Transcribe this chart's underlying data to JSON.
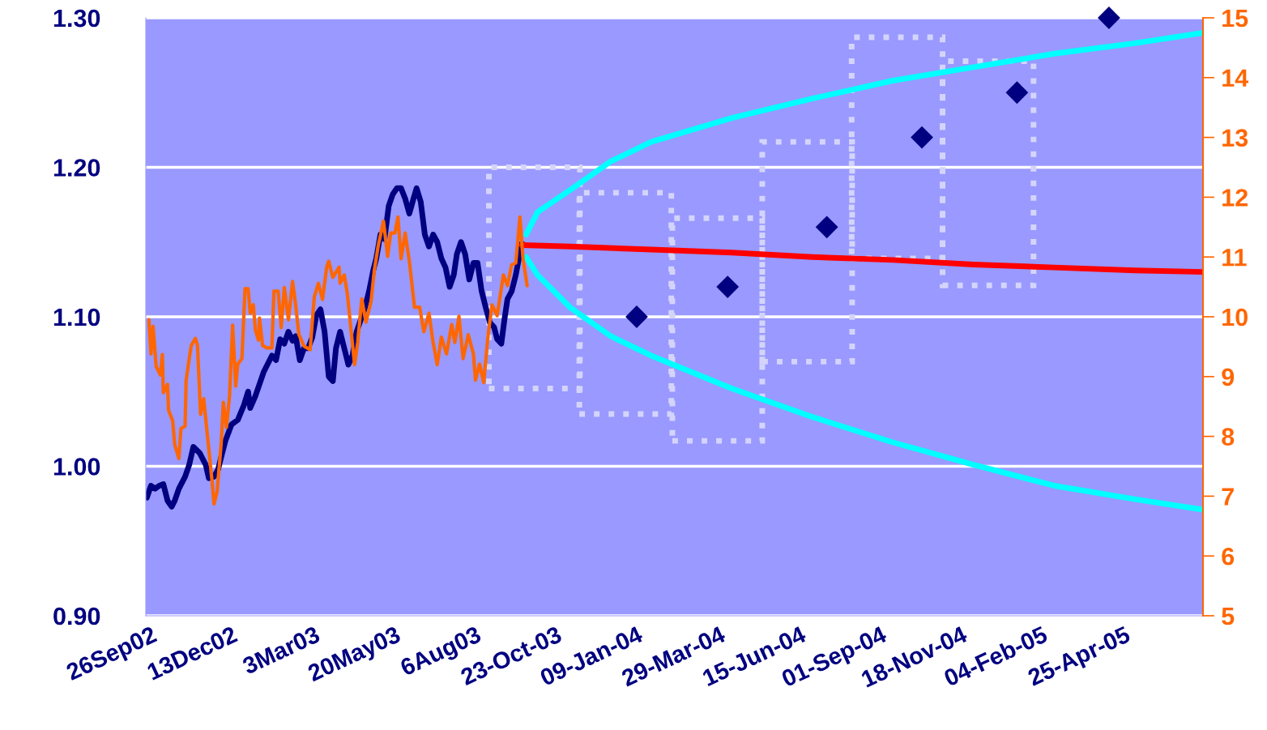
{
  "chart_data": {
    "type": "line",
    "xlim": [
      "2002-09-21",
      "2005-07-10"
    ],
    "xticks": [
      {
        "value": "2002-09-26",
        "label": "26Sep02"
      },
      {
        "value": "2002-12-13",
        "label": "13Dec02"
      },
      {
        "value": "2003-03-03",
        "label": "3Mar03"
      },
      {
        "value": "2003-05-20",
        "label": "20May03"
      },
      {
        "value": "2003-08-06",
        "label": "6Aug03"
      },
      {
        "value": "2003-10-23",
        "label": "23-Oct-03"
      },
      {
        "value": "2004-01-09",
        "label": "09-Jan-04"
      },
      {
        "value": "2004-03-29",
        "label": "29-Mar-04"
      },
      {
        "value": "2004-06-15",
        "label": "15-Jun-04"
      },
      {
        "value": "2004-09-01",
        "label": "01-Sep-04"
      },
      {
        "value": "2004-11-18",
        "label": "18-Nov-04"
      },
      {
        "value": "2005-02-04",
        "label": "04-Feb-05"
      },
      {
        "value": "2005-04-25",
        "label": "25-Apr-05"
      }
    ],
    "ylim": [
      0.9,
      1.3
    ],
    "yticks": [
      {
        "value": 0.9,
        "label": "0.90"
      },
      {
        "value": 1.0,
        "label": "1.00"
      },
      {
        "value": 1.1,
        "label": "1.10"
      },
      {
        "value": 1.2,
        "label": "1.20"
      },
      {
        "value": 1.3,
        "label": "1.30"
      }
    ],
    "y2lim": [
      5,
      15
    ],
    "y2ticks": [
      5,
      6,
      7,
      8,
      9,
      10,
      11,
      12,
      13,
      14,
      15
    ],
    "grid": "y",
    "series": [
      {
        "type": "bar",
        "color": "#d4d4fa",
        "line_style": "dotted",
        "x": [
          "2003-10-02",
          "2003-12-29",
          "2004-03-27",
          "2004-06-22",
          "2004-09-17",
          "2004-12-14"
        ],
        "base": [
          1.052,
          1.035,
          1.017,
          1.07,
          1.139,
          1.121
        ],
        "values": [
          0.148,
          0.148,
          0.149,
          0.147,
          0.148,
          0.15
        ]
      },
      {
        "color": "#000080",
        "x": [
          "2002-09-22",
          "2002-09-26",
          "2002-09-30",
          "2002-10-04",
          "2002-10-08",
          "2002-10-12",
          "2002-10-16",
          "2002-10-19",
          "2002-10-23",
          "2002-10-29",
          "2002-11-02",
          "2002-11-06",
          "2002-11-12",
          "2002-11-18",
          "2002-11-21",
          "2002-11-26",
          "2002-11-30",
          "2002-12-04",
          "2002-12-07",
          "2002-12-13",
          "2002-12-19",
          "2002-12-25",
          "2002-12-29",
          "2002-12-31",
          "2003-01-05",
          "2003-01-09",
          "2003-01-13",
          "2003-01-21",
          "2003-01-25",
          "2003-01-29",
          "2003-02-02",
          "2003-02-06",
          "2003-02-10",
          "2003-02-13",
          "2003-02-17",
          "2003-02-21",
          "2003-02-25",
          "2003-03-01",
          "2003-03-05",
          "2003-03-09",
          "2003-03-13",
          "2003-03-17",
          "2003-03-21",
          "2003-03-24",
          "2003-03-28",
          "2003-04-01",
          "2003-04-05",
          "2003-04-09",
          "2003-04-13",
          "2003-04-17",
          "2003-04-21",
          "2003-04-25",
          "2003-04-29",
          "2003-05-02",
          "2003-05-06",
          "2003-05-10",
          "2003-05-14",
          "2003-05-18",
          "2003-05-22",
          "2003-05-26",
          "2003-05-30",
          "2003-06-03",
          "2003-06-07",
          "2003-06-10",
          "2003-06-14",
          "2003-06-18",
          "2003-06-22",
          "2003-06-26",
          "2003-06-30",
          "2003-07-04",
          "2003-07-08",
          "2003-07-12",
          "2003-07-16",
          "2003-07-19",
          "2003-07-23",
          "2003-07-27",
          "2003-07-31",
          "2003-08-04",
          "2003-08-08",
          "2003-08-12",
          "2003-08-16",
          "2003-08-20",
          "2003-08-24",
          "2003-08-27",
          "2003-08-31",
          "2003-09-03",
          "2003-09-06",
          "2003-09-10",
          "2003-09-14",
          "2003-09-17",
          "2003-09-20"
        ],
        "values": [
          0.979,
          0.987,
          0.985,
          0.987,
          0.988,
          0.977,
          0.973,
          0.977,
          0.985,
          0.993,
          1.001,
          1.013,
          1.009,
          1.001,
          0.992,
          0.993,
          0.998,
          1.009,
          1.017,
          1.028,
          1.031,
          1.041,
          1.05,
          1.039,
          1.047,
          1.055,
          1.063,
          1.074,
          1.071,
          1.085,
          1.082,
          1.09,
          1.084,
          1.087,
          1.071,
          1.079,
          1.079,
          1.086,
          1.101,
          1.105,
          1.09,
          1.06,
          1.057,
          1.079,
          1.09,
          1.079,
          1.068,
          1.074,
          1.09,
          1.098,
          1.106,
          1.117,
          1.131,
          1.139,
          1.155,
          1.152,
          1.174,
          1.182,
          1.186,
          1.186,
          1.179,
          1.169,
          1.179,
          1.186,
          1.177,
          1.155,
          1.147,
          1.155,
          1.15,
          1.139,
          1.133,
          1.12,
          1.128,
          1.142,
          1.15,
          1.142,
          1.125,
          1.136,
          1.136,
          1.117,
          1.106,
          1.096,
          1.093,
          1.085,
          1.082,
          1.098,
          1.112,
          1.117,
          1.128,
          1.139,
          1.149
        ]
      },
      {
        "color": "#ff6600",
        "axis": "y2",
        "x": [
          "2002-09-24",
          "2002-09-26",
          "2002-09-28",
          "2002-10-01",
          "2002-10-05",
          "2002-10-07",
          "2002-10-08",
          "2002-10-12",
          "2002-10-13",
          "2002-10-17",
          "2002-10-19",
          "2002-10-23",
          "2002-10-25",
          "2002-10-29",
          "2002-10-30",
          "2002-11-02",
          "2002-11-04",
          "2002-11-08",
          "2002-11-10",
          "2002-11-13",
          "2002-11-16",
          "2002-11-20",
          "2002-11-24",
          "2002-11-26",
          "2002-11-29",
          "2002-12-03",
          "2002-12-05",
          "2002-12-08",
          "2002-12-11",
          "2002-12-14",
          "2002-12-17",
          "2002-12-19",
          "2002-12-23",
          "2002-12-26",
          "2002-12-29",
          "2002-12-31",
          "2003-01-03",
          "2003-01-05",
          "2003-01-08",
          "2003-01-09",
          "2003-01-12",
          "2003-01-16",
          "2003-01-21",
          "2003-01-23",
          "2003-01-27",
          "2003-01-30",
          "2003-02-02",
          "2003-02-06",
          "2003-02-10",
          "2003-02-13",
          "2003-02-16",
          "2003-02-21",
          "2003-02-27",
          "2003-03-01",
          "2003-03-03",
          "2003-03-07",
          "2003-03-11",
          "2003-03-15",
          "2003-03-17",
          "2003-03-21",
          "2003-03-27",
          "2003-03-28",
          "2003-04-01",
          "2003-04-04",
          "2003-04-11",
          "2003-04-14",
          "2003-04-18",
          "2003-04-22",
          "2003-04-27",
          "2003-04-30",
          "2003-05-04",
          "2003-05-09",
          "2003-05-13",
          "2003-05-16",
          "2003-05-20",
          "2003-05-23",
          "2003-05-26",
          "2003-05-30",
          "2003-06-03",
          "2003-06-08",
          "2003-06-13",
          "2003-06-17",
          "2003-06-22",
          "2003-06-26",
          "2003-06-30",
          "2003-07-04",
          "2003-07-09",
          "2003-07-14",
          "2003-07-17",
          "2003-07-21",
          "2003-07-25",
          "2003-07-30",
          "2003-08-04",
          "2003-08-06",
          "2003-08-10",
          "2003-08-14",
          "2003-08-18",
          "2003-08-22",
          "2003-08-27",
          "2003-09-02",
          "2003-09-06",
          "2003-09-10",
          "2003-09-14",
          "2003-09-18",
          "2003-09-21",
          "2003-09-25"
        ],
        "values": [
          9.95,
          9.38,
          9.84,
          9.17,
          9.03,
          9.37,
          8.73,
          8.87,
          8.44,
          8.26,
          7.86,
          7.63,
          8.13,
          8.17,
          8.94,
          9.3,
          9.52,
          9.64,
          9.52,
          8.37,
          8.63,
          7.95,
          7.27,
          6.87,
          7.08,
          7.9,
          8.57,
          8.15,
          8.67,
          9.86,
          8.84,
          9.21,
          9.3,
          10.47,
          10.47,
          10.06,
          10.2,
          9.78,
          9.61,
          9.98,
          9.52,
          9.48,
          9.48,
          10.43,
          10.43,
          9.82,
          10.49,
          9.95,
          10.59,
          10.2,
          9.71,
          9.51,
          9.45,
          9.89,
          10.33,
          10.56,
          10.29,
          10.83,
          10.93,
          10.66,
          10.83,
          10.56,
          10.7,
          10.39,
          9.2,
          9.57,
          10.3,
          9.91,
          10.26,
          10.76,
          11.2,
          11.6,
          11.01,
          11.4,
          11.4,
          11.67,
          10.97,
          11.4,
          10.93,
          10.16,
          10.16,
          9.75,
          10.06,
          9.57,
          9.2,
          9.66,
          9.38,
          9.87,
          9.57,
          10.01,
          9.3,
          9.7,
          9.38,
          8.94,
          9.21,
          8.9,
          9.66,
          10.2,
          10.02,
          10.7,
          10.52,
          10.87,
          10.9,
          11.67,
          10.97,
          10.52
        ]
      },
      {
        "color": "#ff0000",
        "x": [
          "2003-09-20",
          "2003-11-06",
          "2004-01-23",
          "2004-04-10",
          "2004-06-27",
          "2004-09-13",
          "2004-11-30",
          "2005-02-16",
          "2005-05-05",
          "2005-07-10"
        ],
        "values": [
          1.148,
          1.147,
          1.145,
          1.143,
          1.14,
          1.138,
          1.135,
          1.133,
          1.131,
          1.13
        ]
      },
      {
        "type": "line",
        "color": "#00ffff",
        "x": [
          "2003-09-24",
          "2003-10-05",
          "2003-11-06",
          "2003-12-15",
          "2004-01-23",
          "2004-04-10",
          "2004-06-27",
          "2004-09-13",
          "2004-11-30",
          "2005-02-16",
          "2005-05-05",
          "2005-07-10"
        ],
        "values": [
          1.155,
          1.17,
          1.185,
          1.204,
          1.217,
          1.233,
          1.246,
          1.258,
          1.267,
          1.276,
          1.283,
          1.29
        ]
      },
      {
        "type": "line",
        "color": "#00ffff",
        "x": [
          "2003-09-24",
          "2003-10-05",
          "2003-11-06",
          "2003-12-15",
          "2004-01-23",
          "2004-04-10",
          "2004-06-27",
          "2004-09-13",
          "2004-11-30",
          "2005-02-16",
          "2005-05-05",
          "2005-07-10"
        ],
        "values": [
          1.14,
          1.128,
          1.106,
          1.087,
          1.074,
          1.052,
          1.033,
          1.016,
          1.001,
          0.987,
          0.978,
          0.971
        ]
      },
      {
        "type": "scatter",
        "color": "#000080",
        "marker": "diamond",
        "x": [
          "2004-01-09",
          "2004-04-06",
          "2004-07-11",
          "2004-10-11",
          "2005-01-11",
          "2005-04-10"
        ],
        "values": [
          1.1,
          1.12,
          1.16,
          1.22,
          1.25,
          1.3
        ]
      }
    ]
  }
}
